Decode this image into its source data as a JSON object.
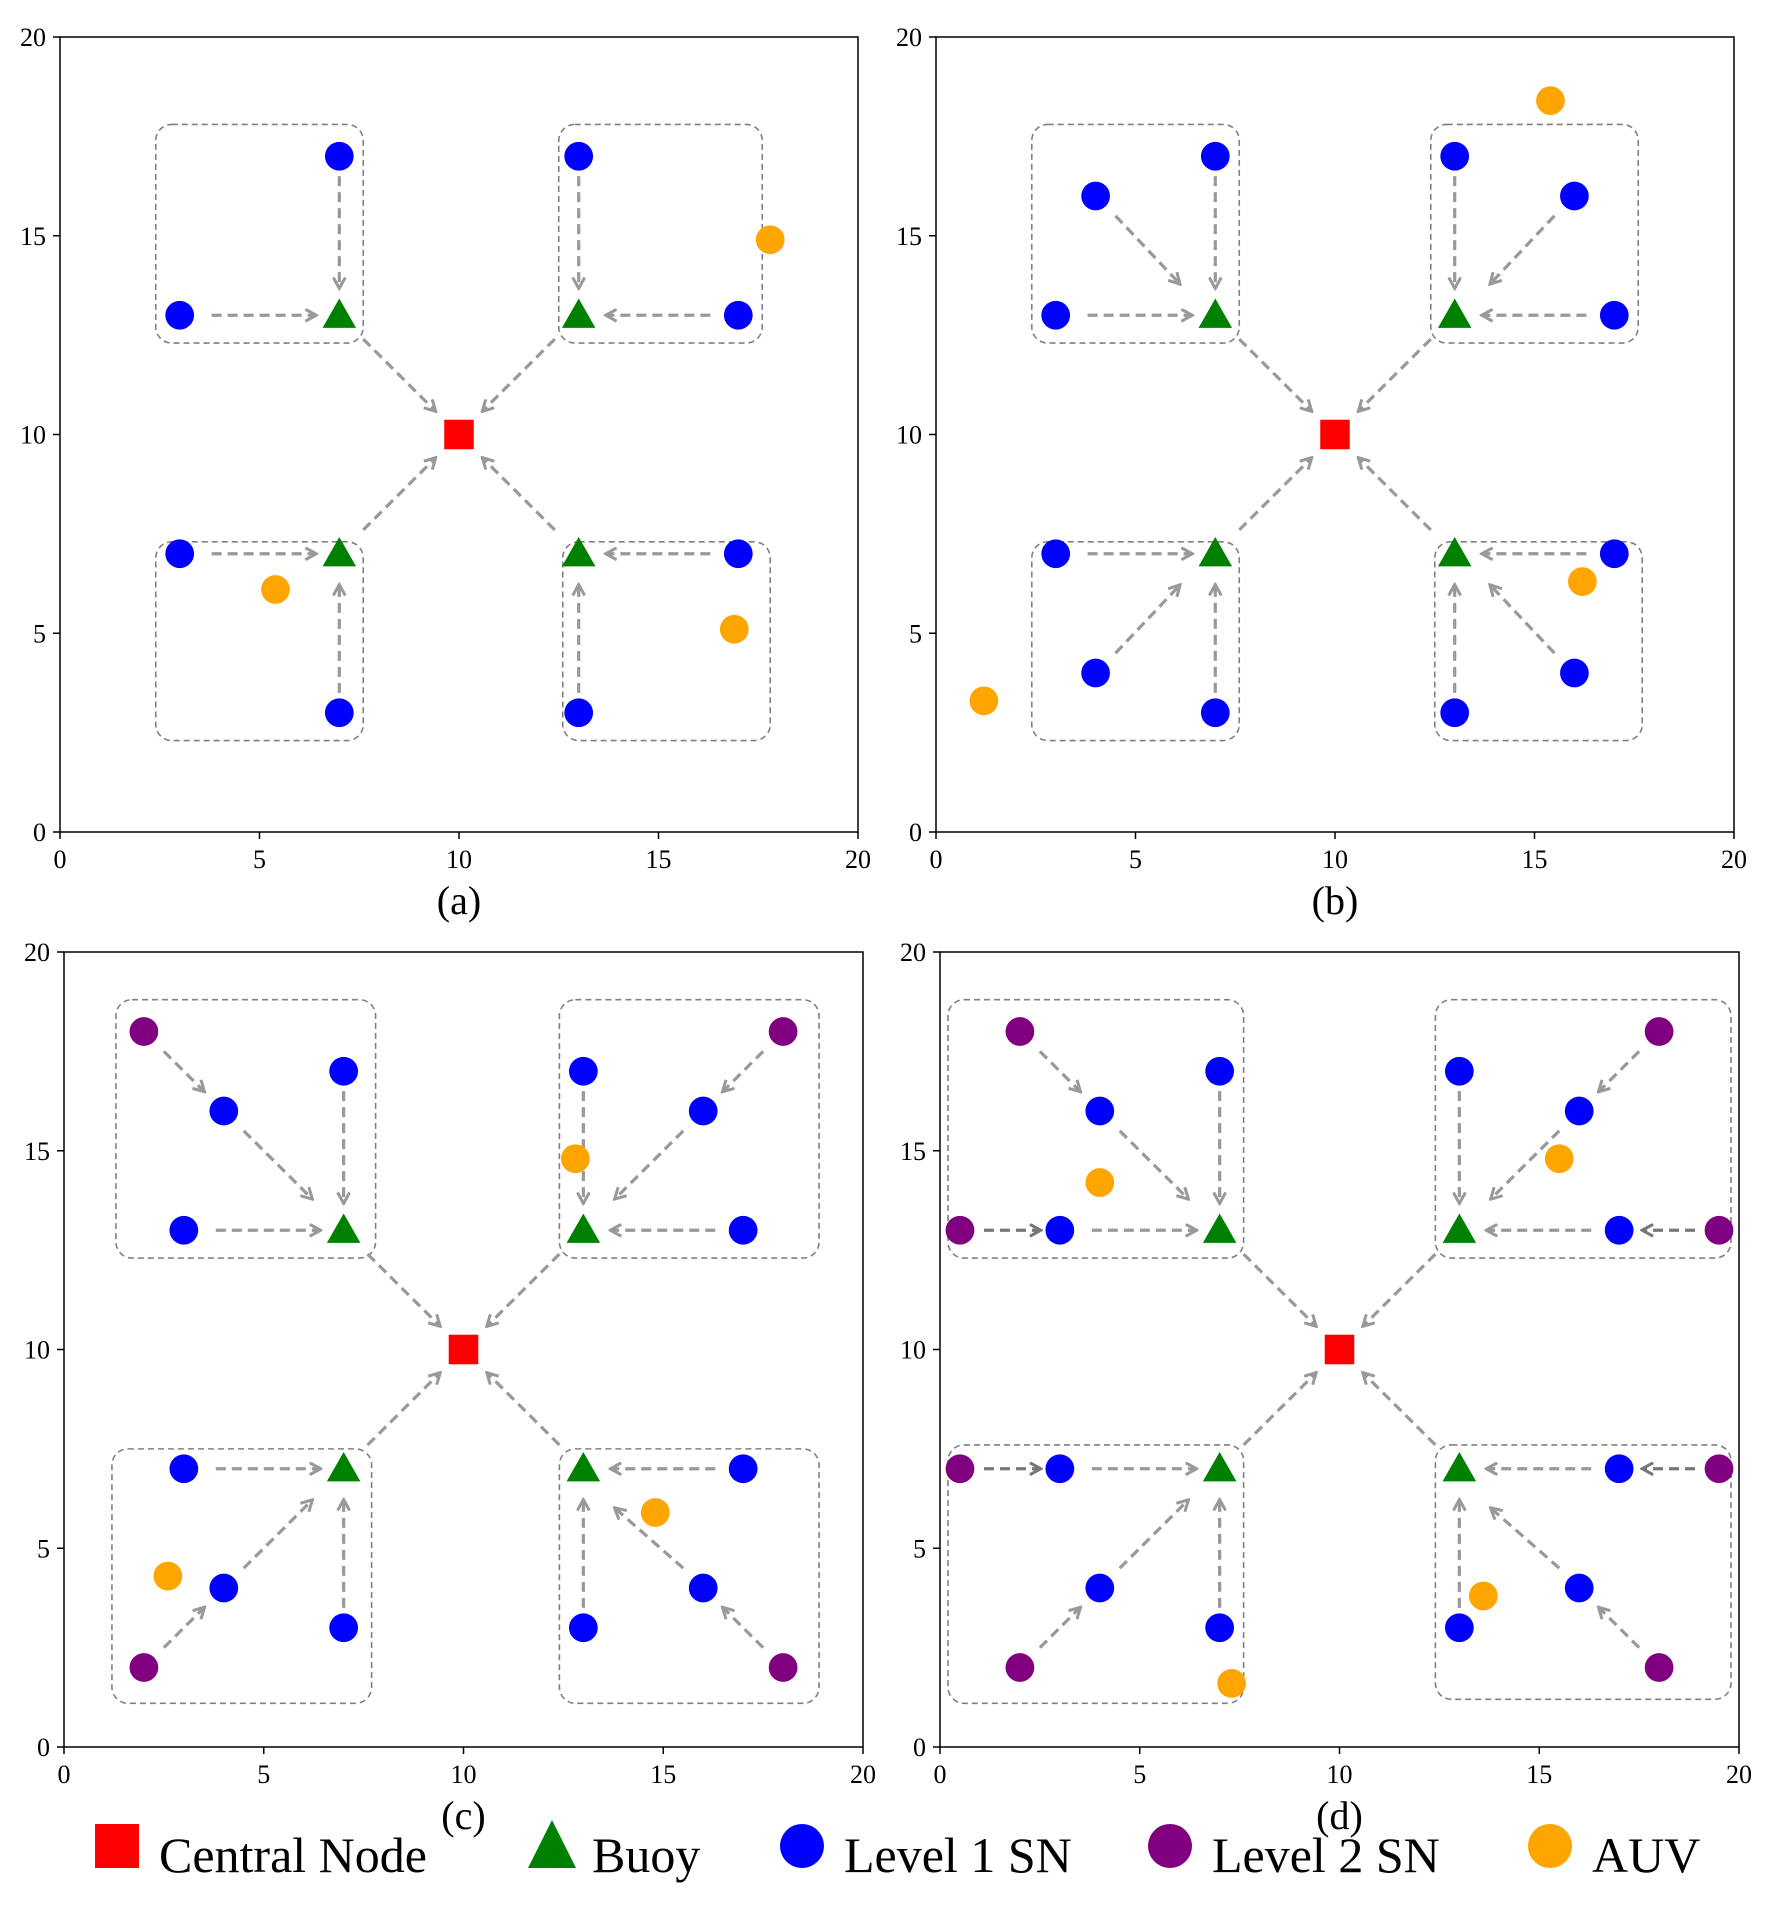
{
  "legend": {
    "items": [
      {
        "key": "central",
        "label": "Central Node",
        "shape": "square",
        "color": "#ff0000"
      },
      {
        "key": "buoy",
        "label": "Buoy",
        "shape": "triangle",
        "color": "#008000"
      },
      {
        "key": "sn1",
        "label": "Level 1 SN",
        "shape": "circle",
        "color": "#0000ff"
      },
      {
        "key": "sn2",
        "label": "Level 2 SN",
        "shape": "circle",
        "color": "#800080"
      },
      {
        "key": "auv",
        "label": "AUV",
        "shape": "circle",
        "color": "#ffa500"
      }
    ]
  },
  "colors": {
    "arrow": "#999999",
    "arrow_dark": "#777777",
    "cluster_border": "#808080",
    "axes": "#000000"
  },
  "chart_data": [
    {
      "type": "scatter",
      "panel_label": "(a)",
      "xlim": [
        0,
        20
      ],
      "ylim": [
        0,
        20
      ],
      "xticks": [
        0,
        5,
        10,
        15,
        20
      ],
      "yticks": [
        0,
        5,
        10,
        15,
        20
      ],
      "central": [
        [
          10,
          10
        ]
      ],
      "buoys": [
        [
          7,
          13
        ],
        [
          13,
          13
        ],
        [
          7,
          7
        ],
        [
          13,
          7
        ]
      ],
      "sn1": [
        [
          7,
          17
        ],
        [
          3,
          13
        ],
        [
          13,
          17
        ],
        [
          17,
          13
        ],
        [
          3,
          7
        ],
        [
          7,
          3
        ],
        [
          17,
          7
        ],
        [
          13,
          3
        ]
      ],
      "sn2": [],
      "auv": [
        [
          17.8,
          14.9
        ],
        [
          5.4,
          6.1
        ],
        [
          16.9,
          5.1
        ]
      ],
      "clusters": [
        [
          2.4,
          12.3,
          7.6,
          17.8
        ],
        [
          12.5,
          12.3,
          17.6,
          17.8
        ],
        [
          2.4,
          2.3,
          7.6,
          7.3
        ],
        [
          12.6,
          2.3,
          17.8,
          7.3
        ]
      ],
      "arrows": [
        [
          7,
          16.5,
          7,
          13.7
        ],
        [
          3.8,
          13,
          6.4,
          13
        ],
        [
          7,
          3.5,
          7,
          6.2
        ],
        [
          3.8,
          7,
          6.4,
          7
        ],
        [
          13,
          16.5,
          13,
          13.7
        ],
        [
          16.3,
          13,
          13.7,
          13
        ],
        [
          13,
          3.5,
          13,
          6.2
        ],
        [
          16.3,
          7,
          13.7,
          7
        ],
        [
          7.6,
          12.4,
          9.4,
          10.6
        ],
        [
          12.4,
          12.4,
          10.6,
          10.6
        ],
        [
          7.6,
          7.6,
          9.4,
          9.4
        ],
        [
          12.4,
          7.6,
          10.6,
          9.4
        ]
      ]
    },
    {
      "type": "scatter",
      "panel_label": "(b)",
      "xlim": [
        0,
        20
      ],
      "ylim": [
        0,
        20
      ],
      "xticks": [
        0,
        5,
        10,
        15,
        20
      ],
      "yticks": [
        0,
        5,
        10,
        15,
        20
      ],
      "central": [
        [
          10,
          10
        ]
      ],
      "buoys": [
        [
          7,
          13
        ],
        [
          13,
          13
        ],
        [
          7,
          7
        ],
        [
          13,
          7
        ]
      ],
      "sn1": [
        [
          7,
          17
        ],
        [
          4,
          16
        ],
        [
          3,
          13
        ],
        [
          13,
          17
        ],
        [
          16,
          16
        ],
        [
          17,
          13
        ],
        [
          3,
          7
        ],
        [
          4,
          4
        ],
        [
          7,
          3
        ],
        [
          17,
          7
        ],
        [
          16,
          4
        ],
        [
          13,
          3
        ]
      ],
      "sn2": [],
      "auv": [
        [
          15.4,
          18.4
        ],
        [
          16.2,
          6.3
        ],
        [
          1.2,
          3.3
        ]
      ],
      "clusters": [
        [
          2.4,
          12.3,
          7.6,
          17.8
        ],
        [
          12.4,
          12.3,
          17.6,
          17.8
        ],
        [
          2.4,
          2.3,
          7.6,
          7.3
        ],
        [
          12.5,
          2.3,
          17.7,
          7.3
        ]
      ],
      "arrows": [
        [
          7,
          16.5,
          7,
          13.7
        ],
        [
          4.5,
          15.5,
          6.1,
          13.8
        ],
        [
          3.8,
          13,
          6.4,
          13
        ],
        [
          13,
          16.5,
          13,
          13.7
        ],
        [
          15.5,
          15.5,
          13.9,
          13.8
        ],
        [
          16.3,
          13,
          13.7,
          13
        ],
        [
          7,
          3.5,
          7,
          6.2
        ],
        [
          4.5,
          4.5,
          6.1,
          6.2
        ],
        [
          3.8,
          7,
          6.4,
          7
        ],
        [
          13,
          3.5,
          13,
          6.2
        ],
        [
          15.5,
          4.5,
          13.9,
          6.2
        ],
        [
          16.3,
          7,
          13.7,
          7
        ],
        [
          7.6,
          12.4,
          9.4,
          10.6
        ],
        [
          12.4,
          12.4,
          10.6,
          10.6
        ],
        [
          7.6,
          7.6,
          9.4,
          9.4
        ],
        [
          12.4,
          7.6,
          10.6,
          9.4
        ]
      ]
    },
    {
      "type": "scatter",
      "panel_label": "(c)",
      "xlim": [
        0,
        20
      ],
      "ylim": [
        0,
        20
      ],
      "xticks": [
        0,
        5,
        10,
        15,
        20
      ],
      "yticks": [
        0,
        5,
        10,
        15,
        20
      ],
      "central": [
        [
          10,
          10
        ]
      ],
      "buoys": [
        [
          7,
          13
        ],
        [
          13,
          13
        ],
        [
          7,
          7
        ],
        [
          13,
          7
        ]
      ],
      "sn1": [
        [
          7,
          17
        ],
        [
          4,
          16
        ],
        [
          3,
          13
        ],
        [
          13,
          17
        ],
        [
          16,
          16
        ],
        [
          17,
          13
        ],
        [
          3,
          7
        ],
        [
          4,
          4
        ],
        [
          7,
          3
        ],
        [
          17,
          7
        ],
        [
          16,
          4
        ],
        [
          13,
          3
        ]
      ],
      "sn2": [
        [
          2,
          18
        ],
        [
          18,
          18
        ],
        [
          2,
          2
        ],
        [
          18,
          2
        ]
      ],
      "auv": [
        [
          12.8,
          14.8
        ],
        [
          2.6,
          4.3
        ],
        [
          14.8,
          5.9
        ]
      ],
      "clusters": [
        [
          1.3,
          12.3,
          7.8,
          18.8
        ],
        [
          12.4,
          12.3,
          18.9,
          18.8
        ],
        [
          1.2,
          1.1,
          7.7,
          7.5
        ],
        [
          12.4,
          1.1,
          18.9,
          7.5
        ]
      ],
      "arrows": [
        [
          2.5,
          17.5,
          3.5,
          16.5
        ],
        [
          4.5,
          15.5,
          6.2,
          13.8
        ],
        [
          7,
          16.5,
          7,
          13.7
        ],
        [
          3.8,
          13,
          6.4,
          13
        ],
        [
          17.5,
          17.5,
          16.5,
          16.5
        ],
        [
          15.5,
          15.5,
          13.8,
          13.8
        ],
        [
          13,
          16.5,
          13,
          13.7
        ],
        [
          16.3,
          13,
          13.7,
          13
        ],
        [
          2.5,
          2.5,
          3.5,
          3.5
        ],
        [
          4.5,
          4.5,
          6.2,
          6.2
        ],
        [
          7,
          3.5,
          7,
          6.2
        ],
        [
          3.8,
          7,
          6.4,
          7
        ],
        [
          17.5,
          2.5,
          16.5,
          3.5
        ],
        [
          15.5,
          4.5,
          13.8,
          6.0
        ],
        [
          13,
          3.5,
          13,
          6.2
        ],
        [
          16.3,
          7,
          13.7,
          7
        ],
        [
          7.6,
          12.4,
          9.4,
          10.6
        ],
        [
          12.4,
          12.4,
          10.6,
          10.6
        ],
        [
          7.6,
          7.6,
          9.4,
          9.4
        ],
        [
          12.4,
          7.6,
          10.6,
          9.4
        ]
      ]
    },
    {
      "type": "scatter",
      "panel_label": "(d)",
      "xlim": [
        0,
        20
      ],
      "ylim": [
        0,
        20
      ],
      "xticks": [
        0,
        5,
        10,
        15,
        20
      ],
      "yticks": [
        0,
        5,
        10,
        15,
        20
      ],
      "central": [
        [
          10,
          10
        ]
      ],
      "buoys": [
        [
          7,
          13
        ],
        [
          13,
          13
        ],
        [
          7,
          7
        ],
        [
          13,
          7
        ]
      ],
      "sn1": [
        [
          7,
          17
        ],
        [
          4,
          16
        ],
        [
          3,
          13
        ],
        [
          13,
          17
        ],
        [
          16,
          16
        ],
        [
          17,
          13
        ],
        [
          3,
          7
        ],
        [
          4,
          4
        ],
        [
          7,
          3
        ],
        [
          17,
          7
        ],
        [
          16,
          4
        ],
        [
          13,
          3
        ]
      ],
      "sn2": [
        [
          2,
          18
        ],
        [
          0.5,
          13
        ],
        [
          18,
          18
        ],
        [
          19.5,
          13
        ],
        [
          0.5,
          7
        ],
        [
          2,
          2
        ],
        [
          19.5,
          7
        ],
        [
          18,
          2
        ]
      ],
      "auv": [
        [
          4,
          14.2
        ],
        [
          15.5,
          14.8
        ],
        [
          13.6,
          3.8
        ],
        [
          7.3,
          1.6
        ]
      ],
      "clusters": [
        [
          0.2,
          12.3,
          7.6,
          18.8
        ],
        [
          12.4,
          12.3,
          19.8,
          18.8
        ],
        [
          0.2,
          1.1,
          7.6,
          7.6
        ],
        [
          12.4,
          1.2,
          19.8,
          7.6
        ]
      ],
      "arrows": [
        [
          2.5,
          17.5,
          3.5,
          16.5
        ],
        [
          4.5,
          15.5,
          6.2,
          13.8
        ],
        [
          7,
          16.5,
          7,
          13.7
        ],
        [
          3.8,
          13,
          6.4,
          13
        ],
        [
          17.5,
          17.5,
          16.5,
          16.5
        ],
        [
          15.5,
          15.5,
          13.8,
          13.8
        ],
        [
          13,
          16.5,
          13,
          13.7
        ],
        [
          16.3,
          13,
          13.7,
          13
        ],
        [
          2.5,
          2.5,
          3.5,
          3.5
        ],
        [
          4.5,
          4.5,
          6.2,
          6.2
        ],
        [
          7,
          3.5,
          7,
          6.2
        ],
        [
          3.8,
          7,
          6.4,
          7
        ],
        [
          17.5,
          2.5,
          16.5,
          3.5
        ],
        [
          15.5,
          4.5,
          13.8,
          6.0
        ],
        [
          13,
          3.5,
          13,
          6.2
        ],
        [
          16.3,
          7,
          13.7,
          7
        ],
        [
          7.6,
          12.4,
          9.4,
          10.6
        ],
        [
          12.4,
          12.4,
          10.6,
          10.6
        ],
        [
          7.6,
          7.6,
          9.4,
          9.4
        ],
        [
          12.4,
          7.6,
          10.6,
          9.4
        ]
      ],
      "arrows_dark": [
        [
          1.1,
          13,
          2.5,
          13
        ],
        [
          18.9,
          13,
          17.6,
          13
        ],
        [
          1.1,
          7,
          2.5,
          7
        ],
        [
          18.9,
          7,
          17.6,
          7
        ]
      ]
    }
  ]
}
